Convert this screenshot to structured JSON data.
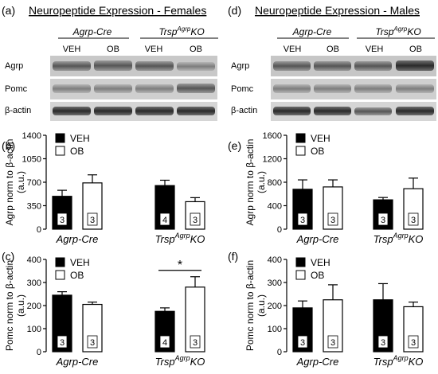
{
  "panel_labels": {
    "a": "(a)",
    "b": "(b)",
    "c": "(c)",
    "d": "(d)",
    "e": "(e)",
    "f": "(f)"
  },
  "blots": [
    {
      "title": "Neuropeptide Expression - Females",
      "group_cre": "Agrp-Cre",
      "group_ko_base": "Trsp",
      "group_ko_sup": "Agrp",
      "group_ko_suffix": "KO",
      "lane_labels": [
        "VEH",
        "OB",
        "VEH",
        "OB"
      ],
      "row_labels": [
        "Agrp",
        "Pomc",
        "β-actin"
      ]
    },
    {
      "title": "Neuropeptide Expression - Males",
      "group_cre": "Agrp-Cre",
      "group_ko_base": "Trsp",
      "group_ko_sup": "Agrp",
      "group_ko_suffix": "KO",
      "lane_labels": [
        "VEH",
        "OB",
        "VEH",
        "OB"
      ],
      "row_labels": [
        "Agrp",
        "Pomc",
        "β-actin"
      ]
    }
  ],
  "chart_data": [
    {
      "panel": "b",
      "type": "bar",
      "ylabel_line1": "Agrp norm to β-actin",
      "ylabel_line2": "(a.u.)",
      "ylim": [
        0,
        1400
      ],
      "yticks": [
        "0",
        "350",
        "700",
        "1050",
        "1400"
      ],
      "groups": [
        "Agrp-Cre",
        "TrspAgrpKO"
      ],
      "series": [
        {
          "name": "VEH",
          "color": "#000000",
          "values": [
            490,
            650
          ],
          "errors": [
            90,
            80
          ],
          "n": [
            "3",
            "4"
          ]
        },
        {
          "name": "OB",
          "color": "#ffffff",
          "values": [
            690,
            410
          ],
          "errors": [
            120,
            60
          ],
          "n": [
            "3",
            "3"
          ]
        }
      ],
      "significance": []
    },
    {
      "panel": "c",
      "type": "bar",
      "ylabel_line1": "Pomc norm to β-actin",
      "ylabel_line2": "(a.u.)",
      "ylim": [
        0,
        400
      ],
      "yticks": [
        "0",
        "100",
        "200",
        "300",
        "400"
      ],
      "groups": [
        "Agrp-Cre",
        "TrspAgrpKO"
      ],
      "series": [
        {
          "name": "VEH",
          "color": "#000000",
          "values": [
            245,
            175
          ],
          "errors": [
            15,
            15
          ],
          "n": [
            "3",
            "4"
          ]
        },
        {
          "name": "OB",
          "color": "#ffffff",
          "values": [
            205,
            280
          ],
          "errors": [
            10,
            45
          ],
          "n": [
            "3",
            "3"
          ]
        }
      ],
      "significance": [
        {
          "group": 1,
          "label": "*"
        }
      ]
    },
    {
      "panel": "e",
      "type": "bar",
      "ylabel_line1": "Agrp norm to β-actin",
      "ylabel_line2": "(a.u.)",
      "ylim": [
        0,
        1600
      ],
      "yticks": [
        "0",
        "400",
        "800",
        "1200",
        "1600"
      ],
      "groups": [
        "Agrp-Cre",
        "TrspAgrpKO"
      ],
      "series": [
        {
          "name": "VEH",
          "color": "#000000",
          "values": [
            680,
            500
          ],
          "errors": [
            160,
            40
          ],
          "n": [
            "3",
            "3"
          ]
        },
        {
          "name": "OB",
          "color": "#ffffff",
          "values": [
            720,
            690
          ],
          "errors": [
            120,
            180
          ],
          "n": [
            "3",
            "3"
          ]
        }
      ],
      "significance": []
    },
    {
      "panel": "f",
      "type": "bar",
      "ylabel_line1": "Pomc norm to β-actin",
      "ylabel_line2": "(a.u.)",
      "ylim": [
        0,
        400
      ],
      "yticks": [
        "0",
        "100",
        "200",
        "300",
        "400"
      ],
      "groups": [
        "Agrp-Cre",
        "TrspAgrpKO"
      ],
      "series": [
        {
          "name": "VEH",
          "color": "#000000",
          "values": [
            190,
            225
          ],
          "errors": [
            30,
            70
          ],
          "n": [
            "3",
            "3"
          ]
        },
        {
          "name": "OB",
          "color": "#ffffff",
          "values": [
            225,
            195
          ],
          "errors": [
            65,
            20
          ],
          "n": [
            "3",
            "3"
          ]
        }
      ],
      "significance": []
    }
  ]
}
